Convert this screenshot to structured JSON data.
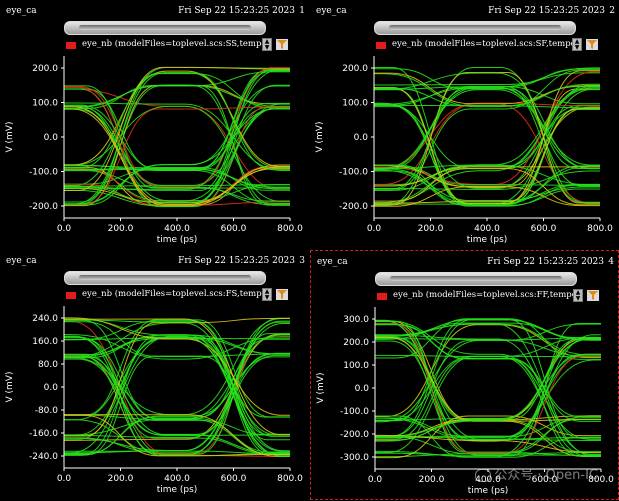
{
  "panels": [
    {
      "name": "eye_ca",
      "timestamp": "Fri Sep 22 15:23:25 2023",
      "number": "1",
      "legend": "eye_nb (modelFiles=toplevel.scs:SS,temperatu",
      "ylabel": "V (mV)",
      "xlabel": "time (ps)",
      "xticks": [
        "0.0",
        "200.0",
        "400.0",
        "600.0",
        "800.0"
      ],
      "yticks": [
        "200.0",
        "100.0",
        "0.0",
        "-100.0",
        "-200.0"
      ],
      "selected": false
    },
    {
      "name": "eye_ca",
      "timestamp": "Fri Sep 22 15:23:25 2023",
      "number": "2",
      "legend": "eye_nb (modelFiles=toplevel.scs:SF,temperatu",
      "ylabel": "V (mV)",
      "xlabel": "time (ps)",
      "xticks": [
        "0.0",
        "200.0",
        "400.0",
        "600.0",
        "800.0"
      ],
      "yticks": [
        "200.0",
        "100.0",
        "0.0",
        "-100.0",
        "-200.0"
      ],
      "selected": false
    },
    {
      "name": "eye_ca",
      "timestamp": "Fri Sep 22 15:23:25 2023",
      "number": "3",
      "legend": "eye_nb (modelFiles=toplevel.scs:FS,temperatu",
      "ylabel": "V (mV)",
      "xlabel": "time (ps)",
      "xticks": [
        "0.0",
        "200.0",
        "400.0",
        "600.0",
        "800.0"
      ],
      "yticks": [
        "240.0",
        "160.0",
        "80.0",
        "0.0",
        "-80.0",
        "-160.0",
        "-240.0"
      ],
      "selected": false
    },
    {
      "name": "eye_ca",
      "timestamp": "Fri Sep 22 15:23:25 2023",
      "number": "4",
      "legend": "eye_nb (modelFiles=toplevel.scs:FF,temperatu",
      "ylabel": "V (mV)",
      "xlabel": "time (ps)",
      "xticks": [
        "0.0",
        "200.0",
        "400.0",
        "600.0",
        "800.0"
      ],
      "yticks": [
        "300.0",
        "200.0",
        "100.0",
        "0.0",
        "-100.0",
        "-200.0",
        "-300.0"
      ],
      "selected": true
    }
  ],
  "watermark": "公众号 · Open-IC",
  "colors": {
    "trace_main": "#27e01b",
    "trace_alt": "#d9c21a",
    "trace_edge": "#e0301a",
    "legend_swatch": "#e51b1b",
    "selection_border": "#d41e1e"
  }
}
